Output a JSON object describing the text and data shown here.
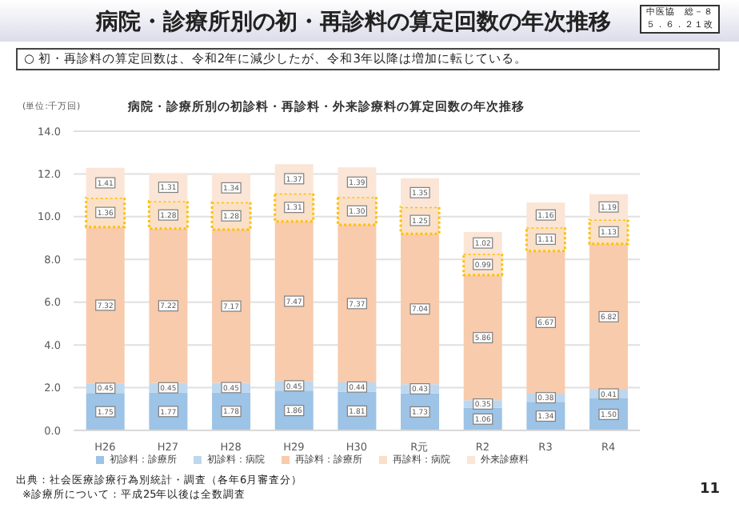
{
  "chart_data": {
    "type": "bar",
    "title": "病院・診療所別の初・再診料の算定回数の年次推移",
    "subtitle": "病院・診療所別の初診料・再診料・外来診療料の算定回数の年次推移",
    "ylabel": "(単位:千万回)",
    "annotations": [
      "○ 初・再診料の算定回数は、令和2年に減少したが、令和3年以降は増加に転じている。",
      "中医協　総－８",
      "５．６．２１改",
      "出典：社会医療診療行為別統計・調査（各年6月審査分）",
      "※診療所について：平成25年以後は全数調査",
      "11"
    ],
    "categories": [
      "H26",
      "H27",
      "H28",
      "H29",
      "H30",
      "R元",
      "R2",
      "R3",
      "R4"
    ],
    "stacked": true,
    "grid": "y",
    "legend": "bottom",
    "ylim": [
      0,
      14
    ],
    "yticks": [
      {
        "value": 0,
        "label": "0.0"
      },
      {
        "value": 2,
        "label": "2.0"
      },
      {
        "value": 4,
        "label": "4.0"
      },
      {
        "value": 6,
        "label": "6.0"
      },
      {
        "value": 8,
        "label": "8.0"
      },
      {
        "value": 10,
        "label": "10.0"
      },
      {
        "value": 12,
        "label": "12.0"
      },
      {
        "value": 14,
        "label": "14.0"
      }
    ],
    "series": [
      {
        "name": "初診料：診療所",
        "color": "#9dc3e6",
        "values": [
          1.75,
          1.77,
          1.78,
          1.86,
          1.81,
          1.73,
          1.06,
          1.34,
          1.5
        ],
        "value_labels": [
          "1.75",
          "1.77",
          "1.78",
          "1.86",
          "1.81",
          "1.73",
          "1.06",
          "1.34",
          "1.50"
        ]
      },
      {
        "name": "初診料：病院",
        "color": "#bdd7ee",
        "values": [
          0.45,
          0.45,
          0.45,
          0.45,
          0.44,
          0.43,
          0.35,
          0.38,
          0.41
        ],
        "value_labels": [
          "0.45",
          "0.45",
          "0.45",
          "0.45",
          "0.44",
          "0.43",
          "0.35",
          "0.38",
          "0.41"
        ]
      },
      {
        "name": "再診料：診療所",
        "color": "#f8cbad",
        "values": [
          7.32,
          7.22,
          7.17,
          7.47,
          7.37,
          7.04,
          5.86,
          6.67,
          6.82
        ],
        "value_labels": [
          "7.32",
          "7.22",
          "7.17",
          "7.47",
          "7.37",
          "7.04",
          "5.86",
          "6.67",
          "6.82"
        ]
      },
      {
        "name": "再診料：病院",
        "color": "#fbe0c8",
        "values": [
          1.36,
          1.28,
          1.28,
          1.31,
          1.3,
          1.25,
          0.99,
          1.11,
          1.13
        ],
        "value_labels": [
          "1.36",
          "1.28",
          "1.28",
          "1.31",
          "1.30",
          "1.25",
          "0.99",
          "1.11",
          "1.13"
        ]
      },
      {
        "name": "外来診療料",
        "color": "#fbe5d6",
        "values": [
          1.41,
          1.31,
          1.34,
          1.37,
          1.39,
          1.35,
          1.02,
          1.16,
          1.19
        ],
        "value_labels": [
          "1.41",
          "1.31",
          "1.34",
          "1.37",
          "1.39",
          "1.35",
          "1.02",
          "1.16",
          "1.19"
        ]
      }
    ]
  }
}
